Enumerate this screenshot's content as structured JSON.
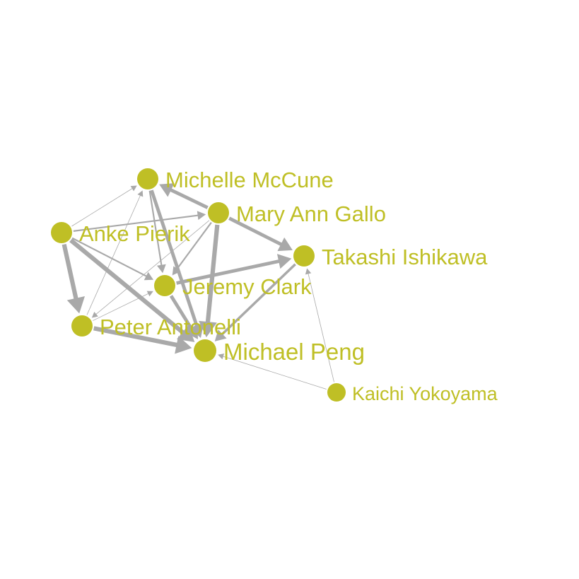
{
  "graph": {
    "node_color": "#bfbf25",
    "edge_color": "#a9a9a9",
    "nodes": [
      {
        "id": "michelle",
        "label": "Michelle McCune"
      },
      {
        "id": "maryann",
        "label": "Mary Ann Gallo"
      },
      {
        "id": "anke",
        "label": "Anke Pierik"
      },
      {
        "id": "takashi",
        "label": "Takashi Ishikawa"
      },
      {
        "id": "jeremy",
        "label": "Jeremy Clark"
      },
      {
        "id": "peter",
        "label": "Peter Antonelli"
      },
      {
        "id": "michael",
        "label": "Michael Peng"
      },
      {
        "id": "kaichi",
        "label": "Kaichi Yokoyama"
      }
    ],
    "edges": [
      {
        "source": "anke",
        "target": "michelle",
        "weight": 1
      },
      {
        "source": "anke",
        "target": "maryann",
        "weight": 2
      },
      {
        "source": "anke",
        "target": "jeremy",
        "weight": 2
      },
      {
        "source": "anke",
        "target": "peter",
        "weight": 5
      },
      {
        "source": "anke",
        "target": "michael",
        "weight": 5
      },
      {
        "source": "maryann",
        "target": "michelle",
        "weight": 4
      },
      {
        "source": "maryann",
        "target": "takashi",
        "weight": 4
      },
      {
        "source": "maryann",
        "target": "jeremy",
        "weight": 2
      },
      {
        "source": "maryann",
        "target": "michael",
        "weight": 5
      },
      {
        "source": "maryann",
        "target": "peter",
        "weight": 1
      },
      {
        "source": "michelle",
        "target": "jeremy",
        "weight": 2
      },
      {
        "source": "michelle",
        "target": "michael",
        "weight": 4
      },
      {
        "source": "jeremy",
        "target": "takashi",
        "weight": 4
      },
      {
        "source": "jeremy",
        "target": "michael",
        "weight": 4
      },
      {
        "source": "peter",
        "target": "michael",
        "weight": 5
      },
      {
        "source": "peter",
        "target": "michelle",
        "weight": 1
      },
      {
        "source": "peter",
        "target": "jeremy",
        "weight": 1
      },
      {
        "source": "takashi",
        "target": "michael",
        "weight": 3
      },
      {
        "source": "kaichi",
        "target": "takashi",
        "weight": 1
      },
      {
        "source": "kaichi",
        "target": "michael",
        "weight": 1
      }
    ]
  }
}
